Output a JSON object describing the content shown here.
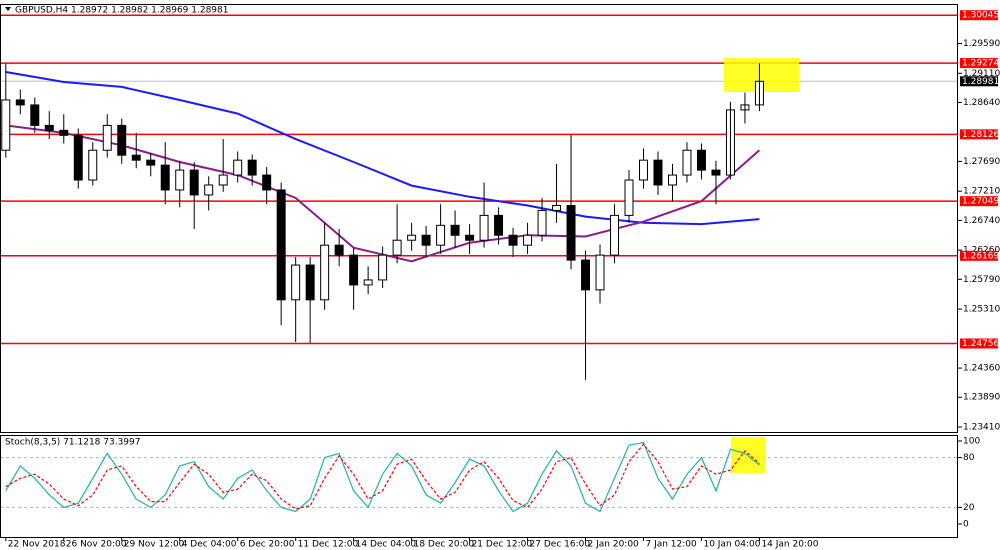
{
  "chart_data": {
    "type": "candlestick",
    "title": "GBPUSD,H4  1.28972 1.28982 1.28969 1.28981",
    "up_color": "#ffffff",
    "down_color": "#000000",
    "outline_color": "#000000",
    "open": [
      1.2787,
      1.2868,
      1.286,
      1.2827,
      1.2819,
      1.2811,
      1.2739,
      1.2787,
      1.2827,
      1.2779,
      1.2771,
      1.2763,
      1.2723,
      1.2755,
      1.2715,
      1.2731,
      1.2747,
      1.2771,
      1.2747,
      1.2723,
      1.2546,
      1.2602,
      1.2546,
      1.2634,
      1.2618,
      1.257,
      1.2578,
      1.2618,
      1.2642,
      1.265,
      1.2634,
      1.2666,
      1.265,
      1.2642,
      1.2682,
      1.265,
      1.2634,
      1.265,
      1.269,
      1.2698,
      1.261,
      1.2562,
      1.2618,
      1.2682,
      1.2739,
      1.2771,
      1.2731,
      1.2747,
      1.2787,
      1.2755,
      1.2747,
      1.2852,
      1.286
    ],
    "high": [
      1.2927,
      1.2885,
      1.2872,
      1.285,
      1.2845,
      1.2822,
      1.28,
      1.2845,
      1.2838,
      1.2815,
      1.2782,
      1.28,
      1.277,
      1.2768,
      1.2745,
      1.2805,
      1.2785,
      1.278,
      1.276,
      1.2735,
      1.2615,
      1.2615,
      1.267,
      1.266,
      1.263,
      1.26,
      1.2632,
      1.27,
      1.267,
      1.2665,
      1.27,
      1.269,
      1.2668,
      1.2735,
      1.2695,
      1.2662,
      1.267,
      1.271,
      1.2765,
      1.2812,
      1.2625,
      1.2635,
      1.27,
      1.2755,
      1.279,
      1.2785,
      1.2765,
      1.28,
      1.2798,
      1.277,
      1.2865,
      1.288,
      1.2927
    ],
    "low": [
      1.2775,
      1.2845,
      1.2815,
      1.2805,
      1.2798,
      1.2725,
      1.273,
      1.2775,
      1.2765,
      1.2758,
      1.2745,
      1.27,
      1.2695,
      1.266,
      1.269,
      1.272,
      1.2735,
      1.273,
      1.27,
      1.2505,
      1.2478,
      1.2476,
      1.253,
      1.26,
      1.253,
      1.2555,
      1.2565,
      1.2605,
      1.2625,
      1.2615,
      1.262,
      1.263,
      1.262,
      1.263,
      1.2635,
      1.2615,
      1.262,
      1.264,
      1.267,
      1.2595,
      1.2417,
      1.254,
      1.2605,
      1.267,
      1.2725,
      1.2715,
      1.2705,
      1.2735,
      1.274,
      1.27,
      1.274,
      1.283,
      1.285
    ],
    "close": [
      1.2868,
      1.286,
      1.2827,
      1.2819,
      1.2811,
      1.2739,
      1.2787,
      1.2827,
      1.2779,
      1.2771,
      1.2763,
      1.2723,
      1.2755,
      1.2715,
      1.2731,
      1.2747,
      1.2771,
      1.2747,
      1.2723,
      1.2546,
      1.2602,
      1.2546,
      1.2634,
      1.2618,
      1.257,
      1.2578,
      1.2618,
      1.2642,
      1.265,
      1.2634,
      1.2666,
      1.265,
      1.2642,
      1.2682,
      1.265,
      1.2634,
      1.265,
      1.269,
      1.2698,
      1.261,
      1.2562,
      1.2618,
      1.2682,
      1.2739,
      1.2771,
      1.2731,
      1.2747,
      1.2787,
      1.2755,
      1.2747,
      1.2852,
      1.286,
      1.2898
    ],
    "overlays": [
      {
        "color": "#1a1aff",
        "x": [
          0,
          4,
          8,
          12,
          16,
          20,
          24,
          28,
          32,
          36,
          40,
          44,
          48,
          52
        ],
        "values": [
          1.2913,
          1.2897,
          1.2889,
          1.2868,
          1.2846,
          1.2805,
          1.2768,
          1.273,
          1.2712,
          1.2698,
          1.268,
          1.267,
          1.2668,
          1.2676
        ]
      },
      {
        "color": "#8b1a8b",
        "x": [
          0,
          4,
          8,
          12,
          16,
          20,
          24,
          28,
          32,
          36,
          40,
          44,
          48,
          52
        ],
        "values": [
          1.2827,
          1.2815,
          1.2795,
          1.2768,
          1.2747,
          1.271,
          1.263,
          1.2608,
          1.2638,
          1.265,
          1.2648,
          1.2672,
          1.2705,
          1.2787
        ]
      }
    ],
    "levels": [
      1.30045,
      1.29274,
      1.28126,
      1.27049,
      1.26169,
      1.24756
    ],
    "level_color": "#ff0000",
    "current_price": 1.28981,
    "xlim": [
      -0.4,
      65.7
    ],
    "ylim": [
      1.2333,
      1.3021
    ],
    "yticks": [
      {
        "value": 1.2959,
        "label": "1.29590"
      },
      {
        "value": 1.2911,
        "label": "1.29110"
      },
      {
        "value": 1.2864,
        "label": "1.28640"
      },
      {
        "value": 1.2769,
        "label": "1.27690"
      },
      {
        "value": 1.2721,
        "label": "1.27210"
      },
      {
        "value": 1.2674,
        "label": "1.26740"
      },
      {
        "value": 1.2626,
        "label": "1.26260"
      },
      {
        "value": 1.2579,
        "label": "1.25790"
      },
      {
        "value": 1.2531,
        "label": "1.25310"
      },
      {
        "value": 1.2436,
        "label": "1.24360"
      },
      {
        "value": 1.2389,
        "label": "1.23890"
      },
      {
        "value": 1.2341,
        "label": "1.23410"
      }
    ],
    "xticks": [
      {
        "value": 0,
        "label": "22 Nov 2018"
      },
      {
        "value": 4,
        "label": "26 Nov 20:00"
      },
      {
        "value": 8,
        "label": "29 Nov 12:00"
      },
      {
        "value": 12,
        "label": "4 Dec 04:00"
      },
      {
        "value": 16,
        "label": "6 Dec 20:00"
      },
      {
        "value": 20,
        "label": "11 Dec 12:00"
      },
      {
        "value": 24,
        "label": "14 Dec 04:00"
      },
      {
        "value": 28,
        "label": "18 Dec 20:00"
      },
      {
        "value": 32,
        "label": "21 Dec 12:00"
      },
      {
        "value": 36,
        "label": "27 Dec 16:00"
      },
      {
        "value": 40,
        "label": "2 Jan 20:00"
      },
      {
        "value": 44,
        "label": "7 Jan 12:00"
      },
      {
        "value": 48,
        "label": "10 Jan 04:00"
      },
      {
        "value": 52,
        "label": "14 Jan 20:00"
      }
    ],
    "oscillator": {
      "title": "Stoch(8,3,5) 71.1218 73.3997",
      "ylim": [
        -15.7,
        106
      ],
      "yticks": [
        100,
        80,
        20,
        0
      ],
      "levels": [
        80,
        20
      ],
      "main_color": "#20b2aa",
      "signal_color": "#ff0000",
      "main": [
        40,
        70,
        55,
        35,
        20,
        25,
        55,
        85,
        60,
        30,
        20,
        35,
        70,
        75,
        45,
        30,
        55,
        65,
        40,
        20,
        15,
        30,
        80,
        85,
        40,
        20,
        60,
        85,
        70,
        35,
        25,
        50,
        78,
        70,
        40,
        15,
        25,
        60,
        88,
        70,
        25,
        15,
        55,
        95,
        98,
        55,
        30,
        60,
        80,
        40,
        90,
        85,
        71
      ],
      "signal": [
        45,
        55,
        60,
        48,
        30,
        22,
        35,
        65,
        70,
        45,
        27,
        27,
        50,
        72,
        60,
        38,
        42,
        60,
        52,
        30,
        18,
        22,
        55,
        82,
        60,
        30,
        40,
        72,
        78,
        52,
        30,
        38,
        65,
        75,
        55,
        28,
        20,
        42,
        75,
        80,
        48,
        22,
        35,
        75,
        96,
        75,
        42,
        45,
        70,
        60,
        65,
        88,
        73
      ]
    }
  }
}
